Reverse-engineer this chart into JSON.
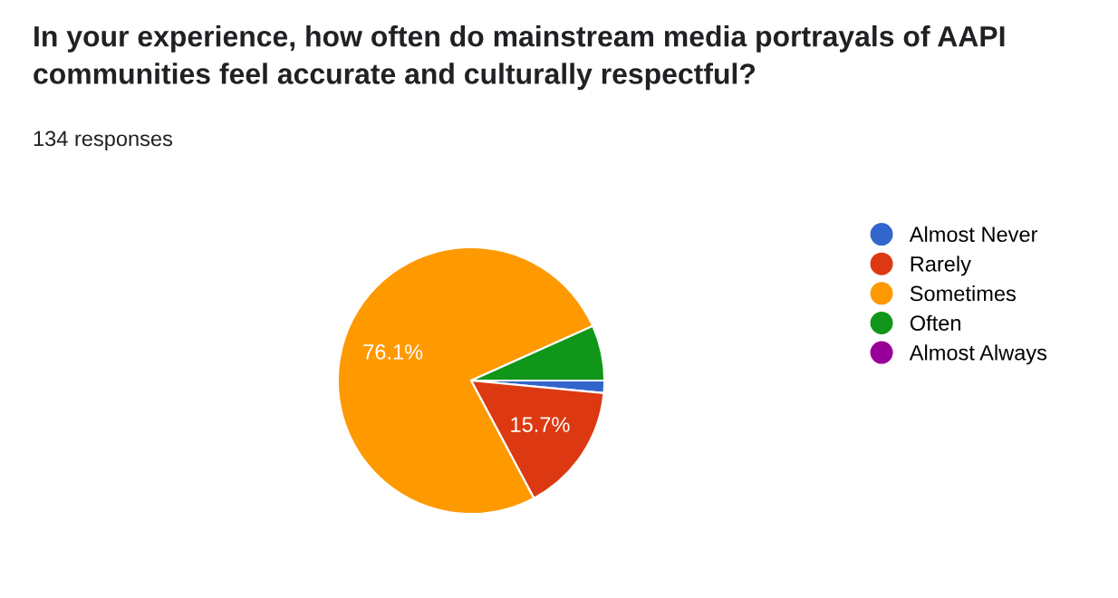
{
  "chart_data": {
    "type": "pie",
    "title": "In your experience, how often do mainstream media portrayals of AAPI\ncommunities feel accurate and culturally respectful?",
    "subtitle": "134 responses",
    "categories": [
      "Almost Never",
      "Rarely",
      "Sometimes",
      "Often",
      "Almost Always"
    ],
    "values": [
      1.5,
      15.7,
      76.1,
      6.7,
      0
    ],
    "colors": [
      "#3366cc",
      "#dc3912",
      "#ff9900",
      "#109618",
      "#990099"
    ],
    "value_labels": [
      null,
      "15.7%",
      "76.1%",
      null,
      null
    ],
    "legend": "right"
  }
}
